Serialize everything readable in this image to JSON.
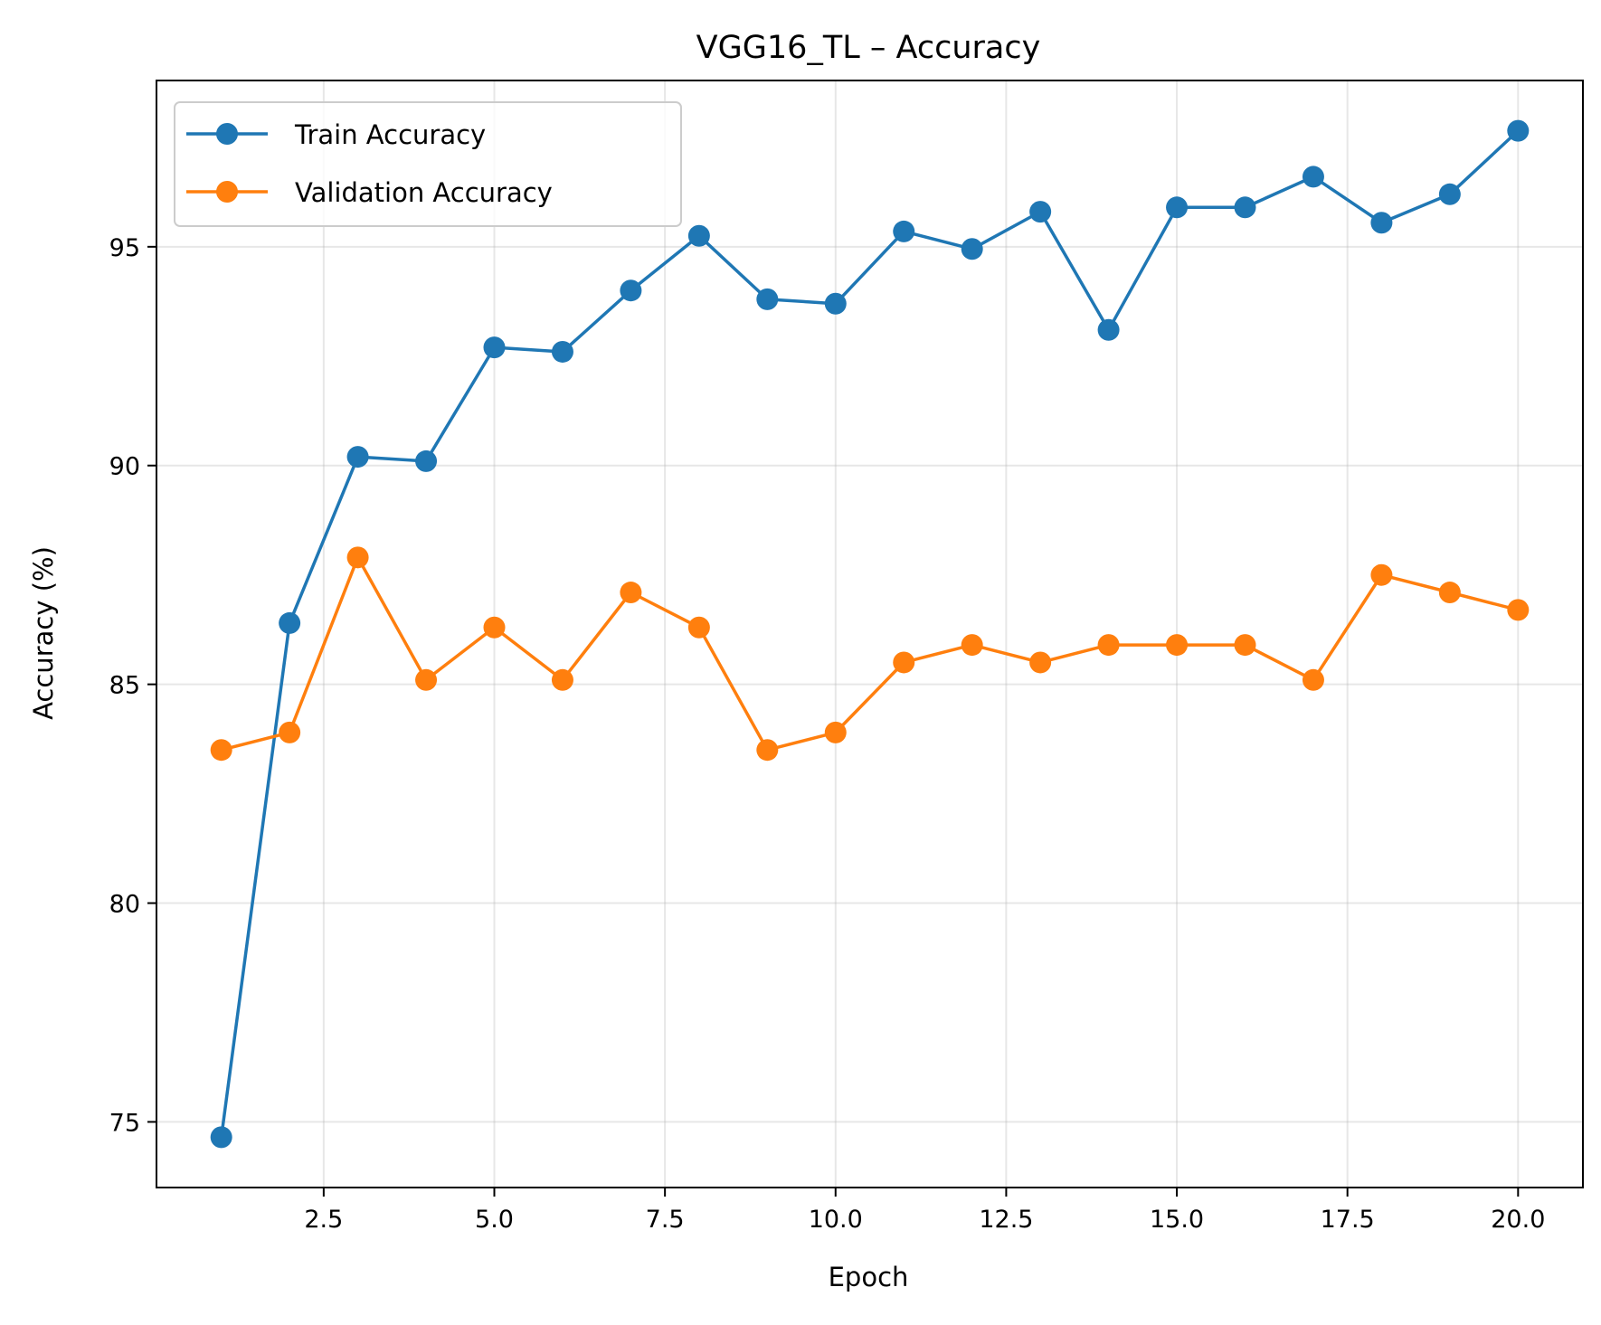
{
  "chart_data": {
    "type": "line",
    "title": "VGG16_TL – Accuracy",
    "xlabel": "Epoch",
    "ylabel": "Accuracy (%)",
    "xlim": [
      0.05,
      20.95
    ],
    "ylim": [
      73.5,
      98.8
    ],
    "xticks": [
      2.5,
      5.0,
      7.5,
      10.0,
      12.5,
      15.0,
      17.5,
      20.0
    ],
    "xtick_labels": [
      "2.5",
      "5.0",
      "7.5",
      "10.0",
      "12.5",
      "15.0",
      "17.5",
      "20.0"
    ],
    "yticks": [
      75,
      80,
      85,
      90,
      95
    ],
    "ytick_labels": [
      "75",
      "80",
      "85",
      "90",
      "95"
    ],
    "grid": true,
    "legend_position": "top-left",
    "x": [
      1,
      2,
      3,
      4,
      5,
      6,
      7,
      8,
      9,
      10,
      11,
      12,
      13,
      14,
      15,
      16,
      17,
      18,
      19,
      20
    ],
    "series": [
      {
        "name": "Train Accuracy",
        "color": "#1f77b4",
        "values": [
          74.65,
          86.4,
          90.2,
          90.1,
          92.7,
          92.6,
          94.0,
          95.25,
          93.8,
          93.7,
          95.35,
          94.95,
          95.8,
          93.1,
          95.9,
          95.9,
          96.6,
          95.55,
          96.2,
          97.65
        ]
      },
      {
        "name": "Validation Accuracy",
        "color": "#ff7f0e",
        "values": [
          83.5,
          83.9,
          87.9,
          85.1,
          86.3,
          85.1,
          87.1,
          86.3,
          83.5,
          83.9,
          85.5,
          85.9,
          85.5,
          85.9,
          85.9,
          85.9,
          85.1,
          87.5,
          87.1,
          86.7
        ]
      }
    ]
  }
}
